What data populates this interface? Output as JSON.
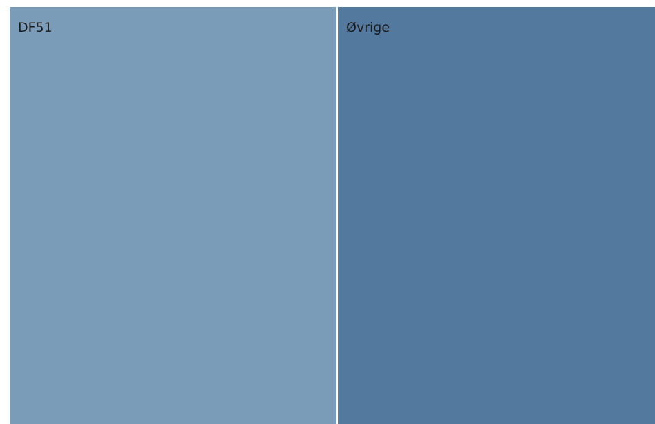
{
  "chart_data": {
    "type": "treemap",
    "items": [
      {
        "label": "DF51",
        "value": 50.9,
        "color": "#7a9cb8"
      },
      {
        "label": "Øvrige",
        "value": 49.1,
        "color": "#53799f"
      }
    ]
  }
}
